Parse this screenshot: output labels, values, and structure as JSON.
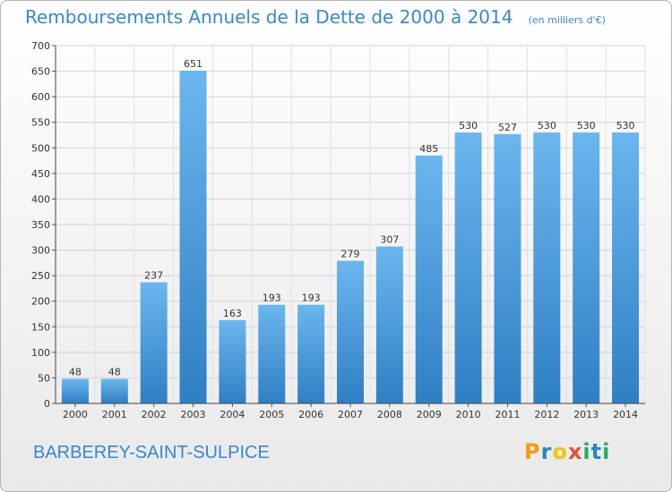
{
  "title": "Remboursements Annuels de la Dette de 2000 à 2014",
  "unit": "(en milliers d'€)",
  "town": "BARBEREY-SAINT-SULPICE",
  "brand": {
    "letters": [
      "P",
      "r",
      "o",
      "x",
      "i",
      "t",
      "i"
    ],
    "colors": [
      "#f39c12",
      "#2e86c1",
      "#f1c40f",
      "#e74c3c",
      "#27ae60",
      "#2e86c1",
      "#27ae60"
    ]
  },
  "colors": {
    "bar_top": "#6bb6ee",
    "bar_bottom": "#2f7fc4",
    "title": "#3a87cf"
  },
  "chart_data": {
    "type": "bar",
    "categories": [
      "2000",
      "2001",
      "2002",
      "2003",
      "2004",
      "2005",
      "2006",
      "2007",
      "2008",
      "2009",
      "2010",
      "2011",
      "2012",
      "2013",
      "2014"
    ],
    "values": [
      48,
      48,
      237,
      651,
      163,
      193,
      193,
      279,
      307,
      485,
      530,
      527,
      530,
      530,
      530
    ],
    "ylim": [
      0,
      700
    ],
    "yticks": [
      0,
      50,
      100,
      150,
      200,
      250,
      300,
      350,
      400,
      450,
      500,
      550,
      600,
      650,
      700
    ],
    "grid": true
  }
}
